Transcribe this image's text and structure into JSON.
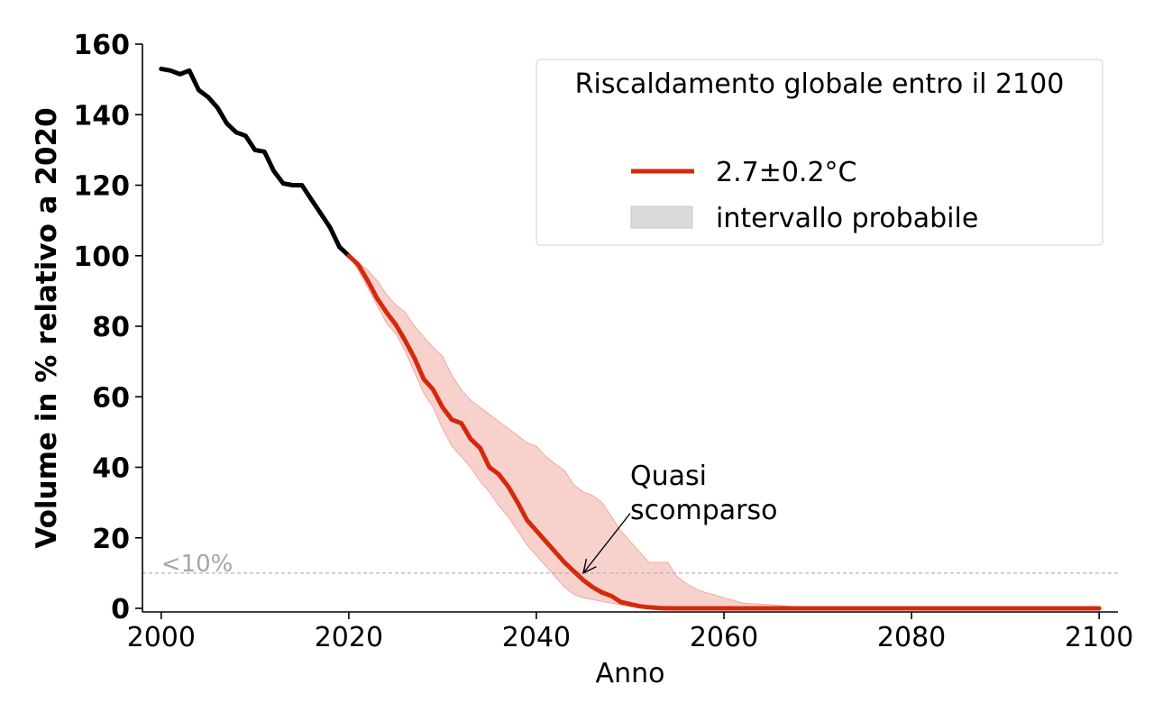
{
  "chart_data": {
    "type": "line",
    "xlabel": "Anno",
    "ylabel": "Volume in % relativo a 2020",
    "xlim": [
      1998,
      2102
    ],
    "ylim": [
      0,
      160
    ],
    "x_ticks": [
      2000,
      2020,
      2040,
      2060,
      2080,
      2100
    ],
    "y_ticks": [
      0,
      20,
      40,
      60,
      80,
      100,
      120,
      140,
      160
    ],
    "grid": false,
    "legend": {
      "title": "Riscaldamento globale entro il 2100",
      "placement": "top-right",
      "entries": [
        {
          "label": "2.7±0.2°C",
          "kind": "line",
          "color": "#d42a0c"
        },
        {
          "label": "intervallo probabile",
          "kind": "patch",
          "color": "#d9d9d9"
        }
      ]
    },
    "threshold": {
      "y": 10,
      "label": "<10%",
      "color": "#b3b3b3"
    },
    "annotation": {
      "lines": [
        "Quasi",
        "scomparso"
      ],
      "x": 2050,
      "y": 30,
      "arrow_to_x": 2045,
      "arrow_to_y": 10
    },
    "series": [
      {
        "role": "observed",
        "color": "#000000",
        "x": [
          2000,
          2001,
          2002,
          2003,
          2004,
          2005,
          2006,
          2007,
          2008,
          2009,
          2010,
          2011,
          2012,
          2013,
          2014,
          2015,
          2016,
          2017,
          2018,
          2019,
          2020
        ],
        "values": [
          153,
          152.5,
          151.5,
          152.5,
          147,
          145,
          142,
          137.5,
          135,
          134,
          130,
          129.5,
          124,
          120.5,
          120,
          120,
          116,
          112,
          108,
          102.5,
          100
        ]
      },
      {
        "role": "projection",
        "name": "2.7±0.2°C",
        "color": "#d42a0c",
        "x": [
          2020,
          2021,
          2022,
          2023,
          2024,
          2025,
          2026,
          2027,
          2028,
          2029,
          2030,
          2031,
          2032,
          2033,
          2034,
          2035,
          2036,
          2037,
          2038,
          2039,
          2040,
          2041,
          2042,
          2043,
          2044,
          2045,
          2046,
          2047,
          2048,
          2049,
          2050,
          2051,
          2052,
          2053,
          2054,
          2055,
          2056,
          2057,
          2058,
          2059,
          2060,
          2062,
          2065,
          2070,
          2080,
          2090,
          2100
        ],
        "values": [
          100,
          97.5,
          93,
          88,
          84,
          80.5,
          76,
          71,
          65,
          62,
          57,
          53.5,
          52.5,
          48,
          45.5,
          40,
          38,
          34.5,
          30,
          25,
          22,
          19,
          16,
          13,
          10.5,
          8,
          6,
          4.5,
          3.5,
          1.8,
          1.2,
          0.6,
          0.3,
          0.1,
          0,
          0,
          0,
          0,
          0,
          0,
          0,
          0,
          0,
          0,
          0,
          0,
          0
        ]
      },
      {
        "role": "range",
        "name": "intervallo probabile",
        "color": "#f6cdc8",
        "x": [
          2020,
          2021,
          2022,
          2023,
          2024,
          2025,
          2026,
          2027,
          2028,
          2029,
          2030,
          2031,
          2032,
          2033,
          2034,
          2035,
          2036,
          2037,
          2038,
          2039,
          2040,
          2041,
          2042,
          2043,
          2044,
          2045,
          2046,
          2047,
          2048,
          2049,
          2050,
          2051,
          2052,
          2053,
          2054,
          2055,
          2056,
          2057,
          2058,
          2059,
          2060,
          2062,
          2065,
          2070,
          2080,
          2090,
          2100
        ],
        "upper": [
          100,
          98,
          96,
          93,
          89,
          86,
          84,
          80,
          77,
          74,
          71.5,
          66,
          62,
          59,
          57,
          55,
          53,
          51,
          49,
          47,
          46,
          43,
          41,
          39,
          35,
          33,
          32,
          30,
          26,
          22,
          19,
          16,
          13,
          13,
          13,
          9,
          7,
          5.5,
          4.5,
          3.8,
          3,
          1.5,
          1,
          0,
          0,
          0,
          0
        ],
        "lower": [
          100,
          96,
          91,
          86,
          81,
          78,
          73,
          67,
          61,
          57,
          51,
          46,
          43,
          40,
          36,
          33,
          29,
          26,
          22,
          18,
          15,
          12,
          9,
          6,
          4,
          3,
          2.5,
          2,
          1.5,
          1,
          0.5,
          0.3,
          0.1,
          0,
          0,
          0,
          0,
          0,
          0,
          0,
          0,
          0,
          0,
          0,
          0,
          0,
          0
        ]
      }
    ]
  }
}
